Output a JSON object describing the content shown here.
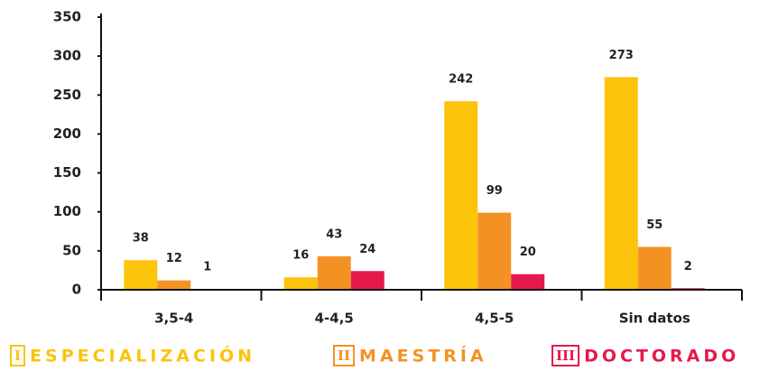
{
  "chart_data": {
    "type": "bar",
    "categories": [
      "3,5-4",
      "4-4,5",
      "4,5-5",
      "Sin datos"
    ],
    "series": [
      {
        "name": "ESPECIALIZACIÓN",
        "numeral": "I",
        "color": "#fcc30b",
        "values": [
          38,
          16,
          242,
          273
        ]
      },
      {
        "name": "MAESTRÍA",
        "numeral": "II",
        "color": "#f39223",
        "values": [
          12,
          43,
          99,
          55
        ]
      },
      {
        "name": "DOCTORADO",
        "numeral": "III",
        "color": "#e5194b",
        "values": [
          1,
          24,
          20,
          2
        ]
      }
    ],
    "ylim": [
      0,
      350
    ],
    "yticks": [
      0,
      50,
      100,
      150,
      200,
      250,
      300,
      350
    ],
    "grid": false
  }
}
